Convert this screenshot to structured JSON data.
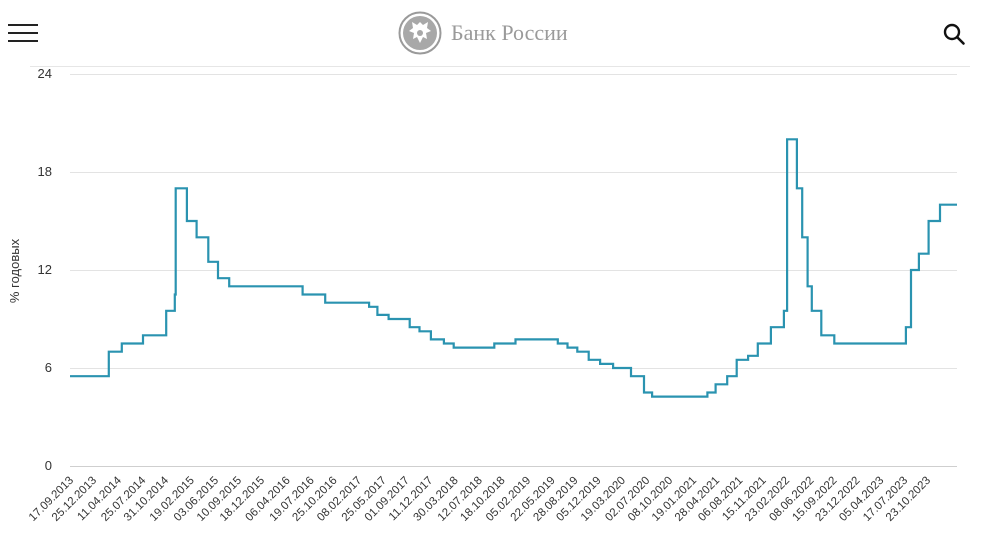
{
  "header": {
    "menu_icon": "hamburger-menu-icon",
    "logo_icon": "double-headed-eagle-emblem",
    "logo_text": "Банк России",
    "search_icon": "search-icon"
  },
  "colors": {
    "line": "#2a93b0",
    "grid": "#e3e3e3",
    "logo": "#9a9a9a"
  },
  "chart_data": {
    "type": "line",
    "step": true,
    "title": "",
    "xlabel": "",
    "ylabel": "% годовых",
    "ylim": [
      0,
      24
    ],
    "yticks": [
      0,
      6,
      12,
      18,
      24
    ],
    "grid": true,
    "x_tick_labels": [
      "17.09.2013",
      "25.12.2013",
      "11.04.2014",
      "25.07.2014",
      "31.10.2014",
      "19.02.2015",
      "03.06.2015",
      "10.09.2015",
      "18.12.2015",
      "06.04.2016",
      "19.07.2016",
      "25.10.2016",
      "08.02.2017",
      "25.05.2017",
      "01.09.2017",
      "11.12.2017",
      "30.03.2018",
      "12.07.2018",
      "18.10.2018",
      "05.02.2019",
      "22.05.2019",
      "28.08.2019",
      "05.12.2019",
      "19.03.2020",
      "02.07.2020",
      "08.10.2020",
      "19.01.2021",
      "28.04.2021",
      "06.08.2021",
      "15.11.2021",
      "23.02.2022",
      "08.06.2022",
      "15.09.2022",
      "23.12.2022",
      "05.04.2023",
      "17.07.2023",
      "23.10.2023"
    ],
    "series": [
      {
        "x": [
          "2013-09-17",
          "2014-03-03",
          "2014-04-28",
          "2014-07-28",
          "2014-11-05",
          "2014-12-12",
          "2014-12-16",
          "2015-02-02",
          "2015-03-16",
          "2015-05-05",
          "2015-06-16",
          "2015-08-03",
          "2016-06-14",
          "2016-09-19",
          "2017-03-27",
          "2017-05-02",
          "2017-06-19",
          "2017-09-18",
          "2017-10-30",
          "2017-12-18",
          "2018-02-12",
          "2018-03-26",
          "2018-09-17",
          "2018-12-17",
          "2019-06-17",
          "2019-07-29",
          "2019-09-09",
          "2019-10-28",
          "2019-12-16",
          "2020-02-10",
          "2020-04-27",
          "2020-06-22",
          "2020-07-27",
          "2021-03-22",
          "2021-04-26",
          "2021-06-15",
          "2021-07-26",
          "2021-09-13",
          "2021-10-25",
          "2021-12-20",
          "2022-02-14",
          "2022-02-28",
          "2022-04-11",
          "2022-05-04",
          "2022-05-27",
          "2022-06-14",
          "2022-07-25",
          "2022-09-19",
          "2023-07-24",
          "2023-08-15",
          "2023-09-18",
          "2023-10-30",
          "2023-12-18",
          "2024-02-29"
        ],
        "values": [
          5.5,
          7.0,
          7.5,
          8.0,
          9.5,
          10.5,
          17.0,
          15.0,
          14.0,
          12.5,
          11.5,
          11.0,
          10.5,
          10.0,
          9.75,
          9.25,
          9.0,
          8.5,
          8.25,
          7.75,
          7.5,
          7.25,
          7.5,
          7.75,
          7.5,
          7.25,
          7.0,
          6.5,
          6.25,
          6.0,
          5.5,
          4.5,
          4.25,
          4.5,
          5.0,
          5.5,
          6.5,
          6.75,
          7.5,
          8.5,
          9.5,
          20.0,
          17.0,
          14.0,
          11.0,
          9.5,
          8.0,
          7.5,
          8.5,
          12.0,
          13.0,
          15.0,
          16.0,
          16.0
        ]
      }
    ]
  }
}
